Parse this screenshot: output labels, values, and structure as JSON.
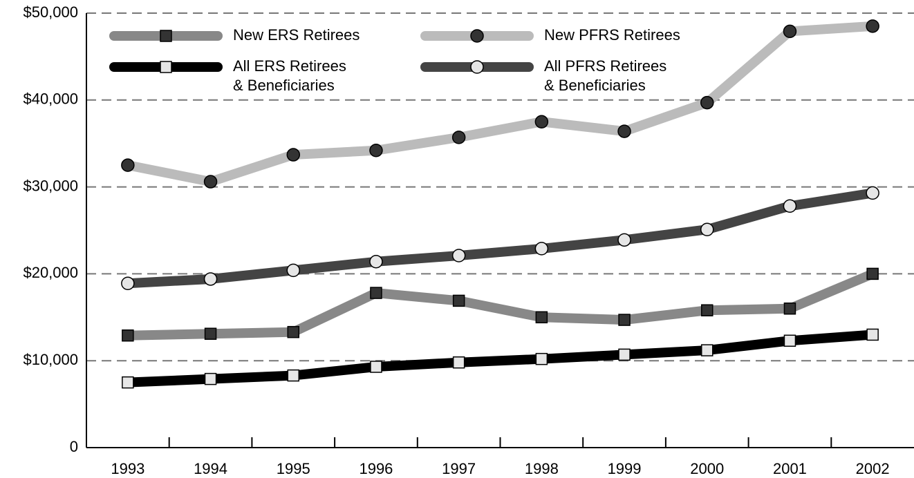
{
  "chart_data": {
    "type": "line",
    "categories": [
      "1993",
      "1994",
      "1995",
      "1996",
      "1997",
      "1998",
      "1999",
      "2000",
      "2001",
      "2002"
    ],
    "series": [
      {
        "name": "New ERS Retirees",
        "color": "#888888",
        "marker": "square",
        "marker_color": "#333333",
        "values": [
          12900,
          13100,
          13300,
          17800,
          16900,
          15000,
          14700,
          15800,
          16000,
          20000
        ]
      },
      {
        "name": "New PFRS Retirees",
        "color": "#bbbbbb",
        "marker": "circle",
        "marker_color": "#333333",
        "values": [
          32500,
          30600,
          33700,
          34200,
          35700,
          37500,
          36400,
          39700,
          47900,
          48500
        ]
      },
      {
        "name": "All ERS Retirees\n& Beneficiaries",
        "color": "#000000",
        "marker": "square",
        "marker_color": "#e6e6e6",
        "values": [
          7500,
          7900,
          8300,
          9300,
          9800,
          10200,
          10700,
          11200,
          12300,
          13000
        ]
      },
      {
        "name": "All PFRS Retirees\n& Beneficiaries",
        "color": "#444444",
        "marker": "circle",
        "marker_color": "#e6e6e6",
        "values": [
          18900,
          19400,
          20400,
          21400,
          22100,
          22900,
          23900,
          25100,
          27800,
          29300
        ]
      }
    ],
    "ylim": [
      0,
      50000
    ],
    "yticks": [
      0,
      {
        "value": 10000,
        "label": "$10,000"
      },
      {
        "value": 20000,
        "label": "$20,000"
      },
      {
        "value": 30000,
        "label": "$30,000"
      },
      {
        "value": 40000,
        "label": "$40,000"
      },
      {
        "value": 50000,
        "label": "$50,000"
      }
    ],
    "grid": true
  }
}
